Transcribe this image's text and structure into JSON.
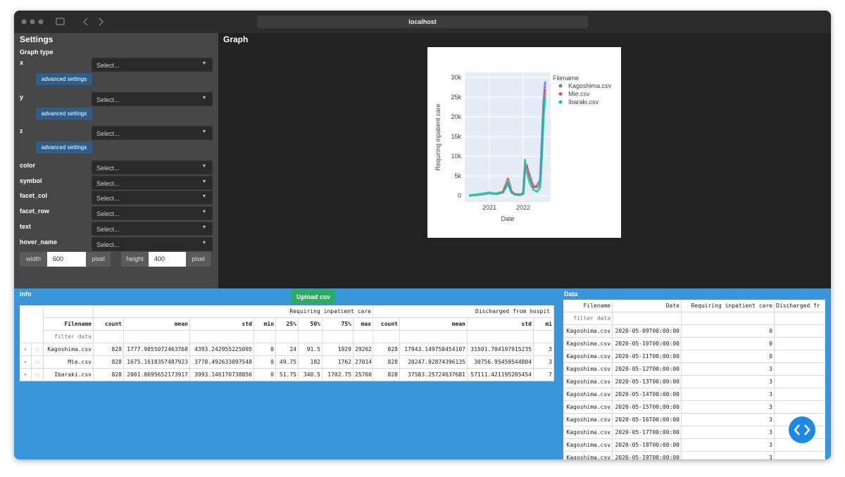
{
  "browser": {
    "url": "localhost"
  },
  "settings": {
    "title": "Settings",
    "graph_type_label": "Graph type",
    "fields": [
      {
        "label": "x",
        "placeholder": "Select...",
        "advanced": "advanced settings"
      },
      {
        "label": "y",
        "placeholder": "Select...",
        "advanced": "advanced settings"
      },
      {
        "label": "z",
        "placeholder": "Select...",
        "advanced": "advanced settings"
      },
      {
        "label": "color",
        "placeholder": "Select..."
      },
      {
        "label": "symbol",
        "placeholder": "Select..."
      },
      {
        "label": "facet_col",
        "placeholder": "Select..."
      },
      {
        "label": "facet_row",
        "placeholder": "Select..."
      },
      {
        "label": "text",
        "placeholder": "Select..."
      },
      {
        "label": "hover_name",
        "placeholder": "Select..."
      }
    ],
    "width": {
      "label": "width",
      "value": "600",
      "unit": "pixel"
    },
    "height": {
      "label": "height",
      "value": "400",
      "unit": "pixel"
    }
  },
  "graph": {
    "title": "Graph",
    "chart_data": {
      "type": "line",
      "x_label": "Date",
      "y_label": "Requiring inpatient care",
      "legend_title": "Filename",
      "legend": "right",
      "x": [
        2020.4,
        2020.6,
        2020.8,
        2021.0,
        2021.2,
        2021.4,
        2021.55,
        2021.65,
        2021.75,
        2021.9,
        2022.0,
        2022.05,
        2022.1,
        2022.2,
        2022.3,
        2022.4,
        2022.5,
        2022.55,
        2022.6,
        2022.65
      ],
      "series": [
        {
          "name": "Kagoshima.csv",
          "color": "#636efa",
          "values": [
            0,
            150,
            300,
            600,
            400,
            800,
            3000,
            900,
            300,
            200,
            400,
            6500,
            7500,
            5000,
            2000,
            2500,
            4000,
            14000,
            24000,
            29000
          ]
        },
        {
          "name": "Mie.csv",
          "color": "#ef553b",
          "values": [
            0,
            200,
            400,
            700,
            500,
            1000,
            4500,
            1200,
            400,
            300,
            600,
            7000,
            8000,
            4000,
            2500,
            2000,
            3000,
            12000,
            22000,
            27000
          ]
        },
        {
          "name": "Ibaraki.csv",
          "color": "#00cc96",
          "values": [
            0,
            300,
            500,
            800,
            400,
            900,
            3500,
            800,
            300,
            200,
            500,
            9000,
            6000,
            3000,
            1500,
            1000,
            2000,
            10000,
            20000,
            25000
          ]
        }
      ],
      "xlim": [
        2020.27,
        2022.81
      ],
      "xticks": [
        2021,
        2022
      ],
      "ylim": [
        -1600,
        31250
      ],
      "yticks": [
        0,
        {
          "value": 5000,
          "label": "5k"
        },
        {
          "value": 10000,
          "label": "10k"
        },
        {
          "value": 15000,
          "label": "15k"
        },
        {
          "value": 20000,
          "label": "20k"
        },
        {
          "value": 25000,
          "label": "25k"
        },
        {
          "value": 30000,
          "label": "30k"
        }
      ],
      "grid": true
    }
  },
  "info": {
    "title": "Info",
    "upload": "Upload csv",
    "table": {
      "group_headers": [
        "Requiring inpatient care",
        "Discharged from hospit"
      ],
      "columns": [
        "Filename",
        "count",
        "mean",
        "std",
        "min",
        "25%",
        "50%",
        "75%",
        "max",
        "count",
        "mean",
        "std",
        "mi"
      ],
      "filter_placeholder": "filter data",
      "rows": [
        [
          "Kagoshima.csv",
          "828",
          "1777.9855072463768",
          "4393.242955225095",
          "0",
          "24",
          "91.5",
          "1929",
          "29262",
          "828",
          "17943.149758454107",
          "31501.704197915235",
          "3"
        ],
        [
          "Mie.csv",
          "828",
          "1675.1618357487923",
          "3778.492633097548",
          "0",
          "49.75",
          "182",
          "1762",
          "27014",
          "828",
          "20247.92874396135",
          "30756.95459544804",
          "3"
        ],
        [
          "Ibaraki.csv",
          "828",
          "2001.8695652173917",
          "3993.146170738856",
          "0",
          "51.75",
          "340.5",
          "1702.75",
          "25760",
          "828",
          "37583.25724637681",
          "57111.421195205454",
          "7"
        ]
      ]
    }
  },
  "data": {
    "title": "Data",
    "table": {
      "columns": [
        "Filename",
        "Date",
        "Requiring inpatient care",
        "Discharged fr"
      ],
      "filter_placeholder": "filter data",
      "rows": [
        [
          "Kagoshima.csv",
          "2020-05-09T00:00:00",
          "0",
          ""
        ],
        [
          "Kagoshima.csv",
          "2020-05-10T00:00:00",
          "0",
          ""
        ],
        [
          "Kagoshima.csv",
          "2020-05-11T00:00:00",
          "0",
          ""
        ],
        [
          "Kagoshima.csv",
          "2020-05-12T00:00:00",
          "3",
          ""
        ],
        [
          "Kagoshima.csv",
          "2020-05-13T00:00:00",
          "3",
          ""
        ],
        [
          "Kagoshima.csv",
          "2020-05-14T00:00:00",
          "3",
          ""
        ],
        [
          "Kagoshima.csv",
          "2020-05-15T00:00:00",
          "3",
          ""
        ],
        [
          "Kagoshima.csv",
          "2020-05-16T00:00:00",
          "3",
          ""
        ],
        [
          "Kagoshima.csv",
          "2020-05-17T00:00:00",
          "3",
          ""
        ],
        [
          "Kagoshima.csv",
          "2020-05-18T00:00:00",
          "3",
          ""
        ],
        [
          "Kagoshima.csv",
          "2020-05-19T00:00:00",
          "3",
          ""
        ]
      ]
    }
  }
}
